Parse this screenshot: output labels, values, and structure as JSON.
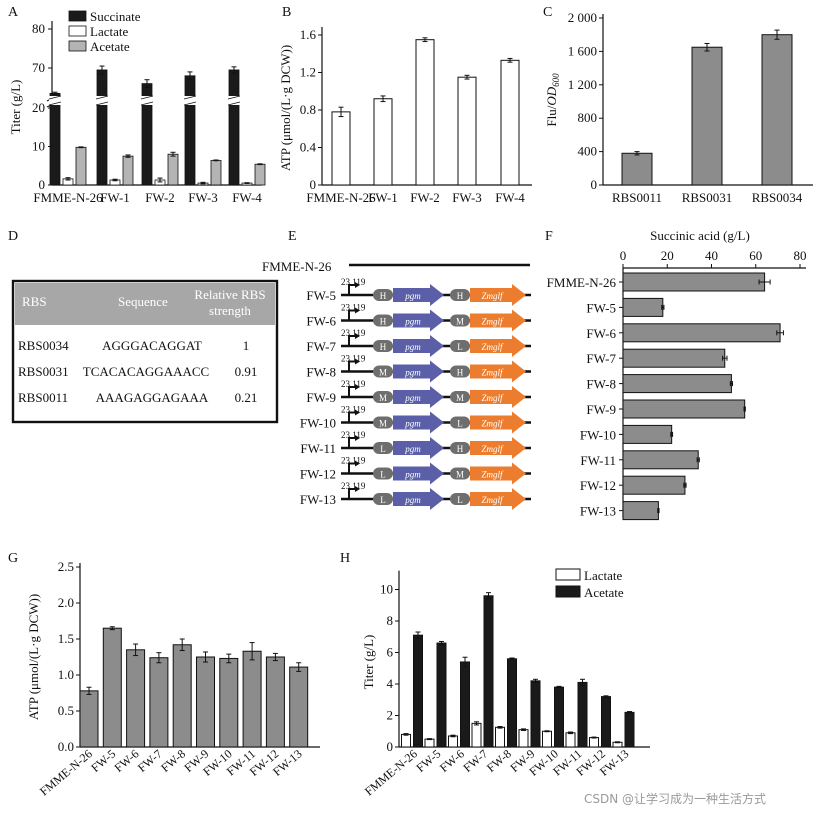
{
  "colors": {
    "dark": "#1a1a1a",
    "light_gray": "#b4b4b4",
    "gray": "#8c8c8c",
    "white": "#ffffff",
    "pgm": "#5a5fa8",
    "zmglf": "#ec7d2f",
    "promoter": "#6e6e6e",
    "table_header": "#a7a7a7"
  },
  "panels": {
    "A": "A",
    "B": "B",
    "C": "C",
    "D": "D",
    "E": "E",
    "F": "F",
    "G": "G",
    "H": "H"
  },
  "chart_data": [
    {
      "id": "A",
      "type": "bar",
      "categories": [
        "FMME-N-26",
        "FW-1",
        "FW-2",
        "FW-3",
        "FW-4"
      ],
      "series": [
        {
          "name": "Succinate",
          "values": [
            63.5,
            69.5,
            66,
            68,
            69.5
          ],
          "errors": [
            0.3,
            1.0,
            1.0,
            1.0,
            0.8
          ]
        },
        {
          "name": "Lactate",
          "values": [
            1.6,
            1.3,
            1.3,
            0.5,
            0.5
          ],
          "errors": [
            0.3,
            0.2,
            0.5,
            0.2,
            0.1
          ]
        },
        {
          "name": "Acetate",
          "values": [
            9.8,
            7.5,
            8.0,
            6.4,
            5.4
          ],
          "errors": [
            0.1,
            0.3,
            0.5,
            0.1,
            0.1
          ]
        }
      ],
      "ylabel": "Titer (g/L)",
      "yticks_lower": [
        "0",
        "10",
        "20"
      ],
      "yticks_upper": [
        "70",
        "80"
      ],
      "axis_break": [
        22,
        60
      ]
    },
    {
      "id": "B",
      "type": "bar",
      "categories": [
        "FMME-N-26",
        "FW-1",
        "FW-2",
        "FW-3",
        "FW-4"
      ],
      "values": [
        0.78,
        0.92,
        1.55,
        1.15,
        1.33
      ],
      "errors": [
        0.05,
        0.03,
        0.02,
        0.02,
        0.02
      ],
      "ylabel_prefix": "ATP (μmol/(L·g DCW))",
      "ylim": [
        0,
        1.6
      ],
      "yticks": [
        "0",
        "0.4",
        "0.8",
        "1.2",
        "1.6"
      ]
    },
    {
      "id": "C",
      "type": "bar",
      "categories": [
        "RBS0011",
        "RBS0031",
        "RBS0034"
      ],
      "values": [
        380,
        1650,
        1800
      ],
      "errors": [
        20,
        45,
        55
      ],
      "ylabel_main": "Flu/",
      "ylabel_italic": "OD",
      "ylabel_sub": "600",
      "ylim": [
        0,
        2000
      ],
      "yticks": [
        "0",
        "400",
        "800",
        "1 200",
        "1 600",
        "2 000"
      ]
    },
    {
      "id": "F",
      "type": "bar",
      "orientation": "horizontal",
      "categories": [
        "FMME-N-26",
        "FW-5",
        "FW-6",
        "FW-7",
        "FW-8",
        "FW-9",
        "FW-10",
        "FW-11",
        "FW-12",
        "FW-13"
      ],
      "values": [
        64,
        18,
        71,
        46,
        49,
        55,
        22,
        34,
        28,
        16
      ],
      "errors": [
        2.5,
        0.5,
        1.5,
        1.0,
        0.5,
        0.3,
        0.4,
        0.5,
        0.5,
        0.3
      ],
      "xlabel": "Succinic acid (g/L)",
      "xlim": [
        0,
        80
      ],
      "xticks": [
        "0",
        "20",
        "40",
        "60",
        "80"
      ]
    },
    {
      "id": "G",
      "type": "bar",
      "categories": [
        "FMME-N-26",
        "FW-5",
        "FW-6",
        "FW-7",
        "FW-8",
        "FW-9",
        "FW-10",
        "FW-11",
        "FW-12",
        "FW-13"
      ],
      "values": [
        0.78,
        1.65,
        1.35,
        1.24,
        1.42,
        1.25,
        1.23,
        1.33,
        1.25,
        1.11
      ],
      "errors": [
        0.05,
        0.02,
        0.08,
        0.07,
        0.08,
        0.07,
        0.06,
        0.12,
        0.05,
        0.06
      ],
      "ylabel": "ATP (μmol/(L·g DCW))",
      "ylim": [
        0,
        2.5
      ],
      "yticks": [
        "0.0",
        "0.5",
        "1.0",
        "1.5",
        "2.0",
        "2.5"
      ]
    },
    {
      "id": "H",
      "type": "bar",
      "categories": [
        "FMME-N-26",
        "FW-5",
        "FW-6",
        "FW-7",
        "FW-8",
        "FW-9",
        "FW-10",
        "FW-11",
        "FW-12",
        "FW-13"
      ],
      "series": [
        {
          "name": "Lactate",
          "values": [
            0.8,
            0.5,
            0.7,
            1.5,
            1.25,
            1.1,
            1.0,
            0.9,
            0.6,
            0.3
          ],
          "errors": [
            0.05,
            0.03,
            0.05,
            0.1,
            0.05,
            0.05,
            0.03,
            0.05,
            0.03,
            0.03
          ]
        },
        {
          "name": "Acetate",
          "values": [
            7.1,
            6.6,
            5.4,
            9.6,
            5.6,
            4.2,
            3.8,
            4.1,
            3.2,
            2.2
          ],
          "errors": [
            0.2,
            0.1,
            0.3,
            0.2,
            0.05,
            0.1,
            0.05,
            0.2,
            0.05,
            0.05
          ]
        }
      ],
      "ylabel": "Titer (g/L)",
      "ylim": [
        0,
        11
      ],
      "yticks": [
        "0",
        "2",
        "4",
        "6",
        "8",
        "10"
      ]
    }
  ],
  "table_D": {
    "headers": {
      "rbs": "RBS",
      "sequence": "Sequence",
      "strength_line1": "Relative RBS",
      "strength_line2": "strength"
    },
    "rows": [
      {
        "rbs": "RBS0034",
        "sequence": "AGGGACAGGAT",
        "strength": "1"
      },
      {
        "rbs": "RBS0031",
        "sequence": "TCACACAGGAAACC",
        "strength": "0.91"
      },
      {
        "rbs": "RBS0011",
        "sequence": "AAAGAGGAGAAA",
        "strength": "0.21"
      }
    ]
  },
  "constructs_E": {
    "control": "FMME-N-26",
    "promoter": "23 119",
    "gene1": "pgm",
    "gene2": "Zmglf",
    "rows": [
      {
        "name": "FW-5",
        "rbs1": "H",
        "rbs2": "H"
      },
      {
        "name": "FW-6",
        "rbs1": "H",
        "rbs2": "M"
      },
      {
        "name": "FW-7",
        "rbs1": "H",
        "rbs2": "L"
      },
      {
        "name": "FW-8",
        "rbs1": "M",
        "rbs2": "H"
      },
      {
        "name": "FW-9",
        "rbs1": "M",
        "rbs2": "M"
      },
      {
        "name": "FW-10",
        "rbs1": "M",
        "rbs2": "L"
      },
      {
        "name": "FW-11",
        "rbs1": "L",
        "rbs2": "H"
      },
      {
        "name": "FW-12",
        "rbs1": "L",
        "rbs2": "M"
      },
      {
        "name": "FW-13",
        "rbs1": "L",
        "rbs2": "L"
      }
    ]
  },
  "watermark": "CSDN @让学习成为一种生活方式"
}
